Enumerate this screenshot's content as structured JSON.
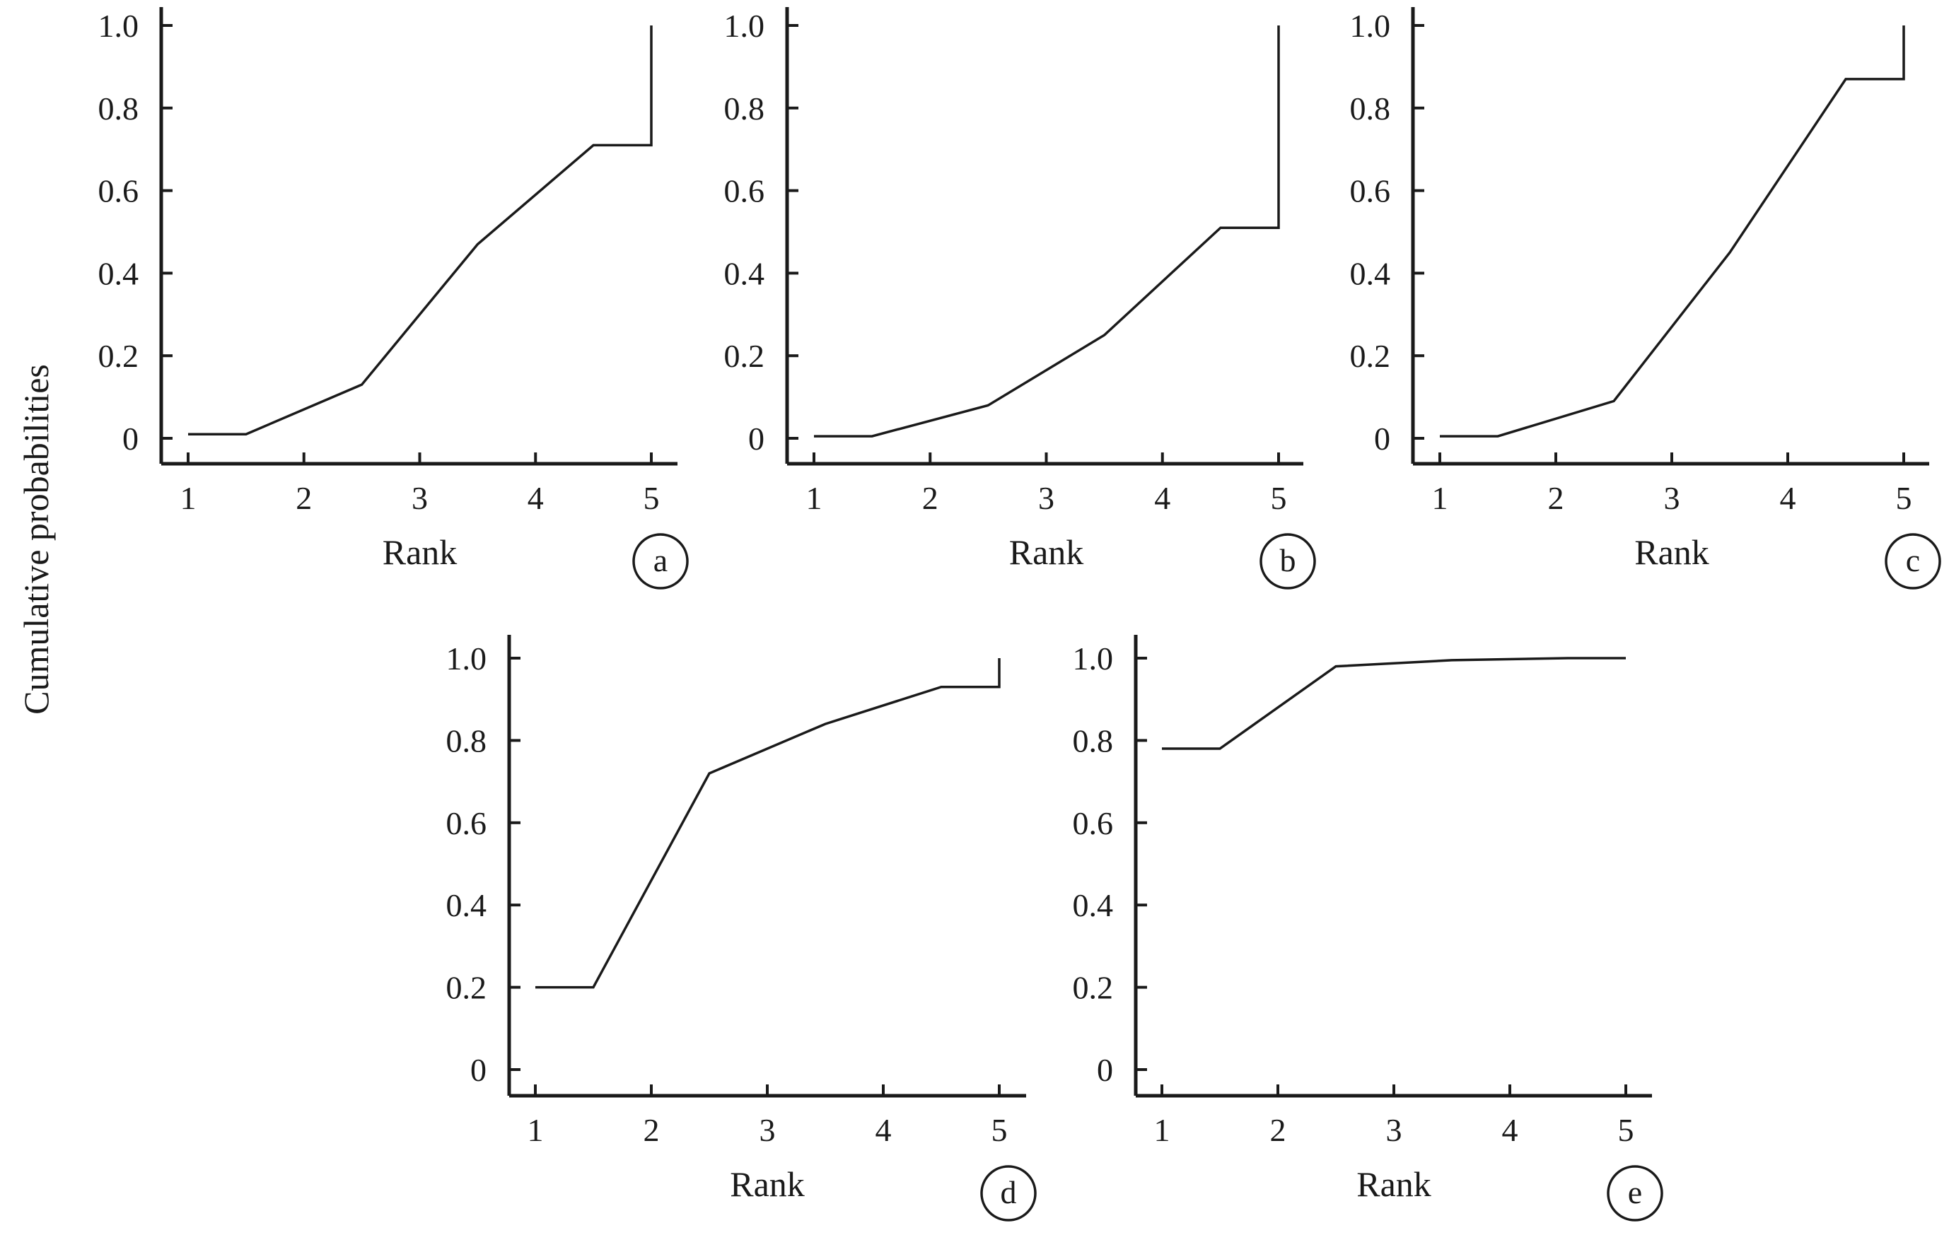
{
  "figure": {
    "shared_ylabel": "Cumulative probabilities"
  },
  "chart_data": [
    {
      "type": "line",
      "panel_label": "a",
      "xlabel": "Rank",
      "ylabel": "Cumulative probabilities",
      "xlim": [
        1,
        5
      ],
      "ylim": [
        0,
        1.0
      ],
      "xticks": [
        "1",
        "2",
        "3",
        "4",
        "5"
      ],
      "yticks": [
        "0",
        "0.2",
        "0.4",
        "0.6",
        "0.8",
        "1.0"
      ],
      "grid": false,
      "series": [
        {
          "x": [
            1,
            1.5,
            2.5,
            3.5,
            4.5,
            5,
            5
          ],
          "y": [
            0.01,
            0.01,
            0.13,
            0.47,
            0.71,
            0.71,
            1.0
          ]
        }
      ]
    },
    {
      "type": "line",
      "panel_label": "b",
      "xlabel": "Rank",
      "ylabel": "Cumulative probabilities",
      "xlim": [
        1,
        5
      ],
      "ylim": [
        0,
        1.0
      ],
      "xticks": [
        "1",
        "2",
        "3",
        "4",
        "5"
      ],
      "yticks": [
        "0",
        "0.2",
        "0.4",
        "0.6",
        "0.8",
        "1.0"
      ],
      "grid": false,
      "series": [
        {
          "x": [
            1,
            1.5,
            2.5,
            3.5,
            4.5,
            5,
            5
          ],
          "y": [
            0.005,
            0.005,
            0.08,
            0.25,
            0.51,
            0.51,
            1.0
          ]
        }
      ]
    },
    {
      "type": "line",
      "panel_label": "c",
      "xlabel": "Rank",
      "ylabel": "Cumulative probabilities",
      "xlim": [
        1,
        5
      ],
      "ylim": [
        0,
        1.0
      ],
      "xticks": [
        "1",
        "2",
        "3",
        "4",
        "5"
      ],
      "yticks": [
        "0",
        "0.2",
        "0.4",
        "0.6",
        "0.8",
        "1.0"
      ],
      "grid": false,
      "series": [
        {
          "x": [
            1,
            1.5,
            2.5,
            3.5,
            4.5,
            5,
            5
          ],
          "y": [
            0.005,
            0.005,
            0.09,
            0.45,
            0.87,
            0.87,
            1.0
          ]
        }
      ]
    },
    {
      "type": "line",
      "panel_label": "d",
      "xlabel": "Rank",
      "ylabel": "Cumulative probabilities",
      "xlim": [
        1,
        5
      ],
      "ylim": [
        0,
        1.0
      ],
      "xticks": [
        "1",
        "2",
        "3",
        "4",
        "5"
      ],
      "yticks": [
        "0",
        "0.2",
        "0.4",
        "0.6",
        "0.8",
        "1.0"
      ],
      "grid": false,
      "series": [
        {
          "x": [
            1,
            1.5,
            2.5,
            3.5,
            4.5,
            5,
            5
          ],
          "y": [
            0.2,
            0.2,
            0.72,
            0.84,
            0.93,
            0.93,
            1.0
          ]
        }
      ]
    },
    {
      "type": "line",
      "panel_label": "e",
      "xlabel": "Rank",
      "ylabel": "Cumulative probabilities",
      "xlim": [
        1,
        5
      ],
      "ylim": [
        0,
        1.0
      ],
      "xticks": [
        "1",
        "2",
        "3",
        "4",
        "5"
      ],
      "yticks": [
        "0",
        "0.2",
        "0.4",
        "0.6",
        "0.8",
        "1.0"
      ],
      "grid": false,
      "series": [
        {
          "x": [
            1,
            1.5,
            2.5,
            3.5,
            4.5,
            5
          ],
          "y": [
            0.78,
            0.78,
            0.98,
            0.995,
            1.0,
            1.0
          ]
        }
      ]
    }
  ]
}
